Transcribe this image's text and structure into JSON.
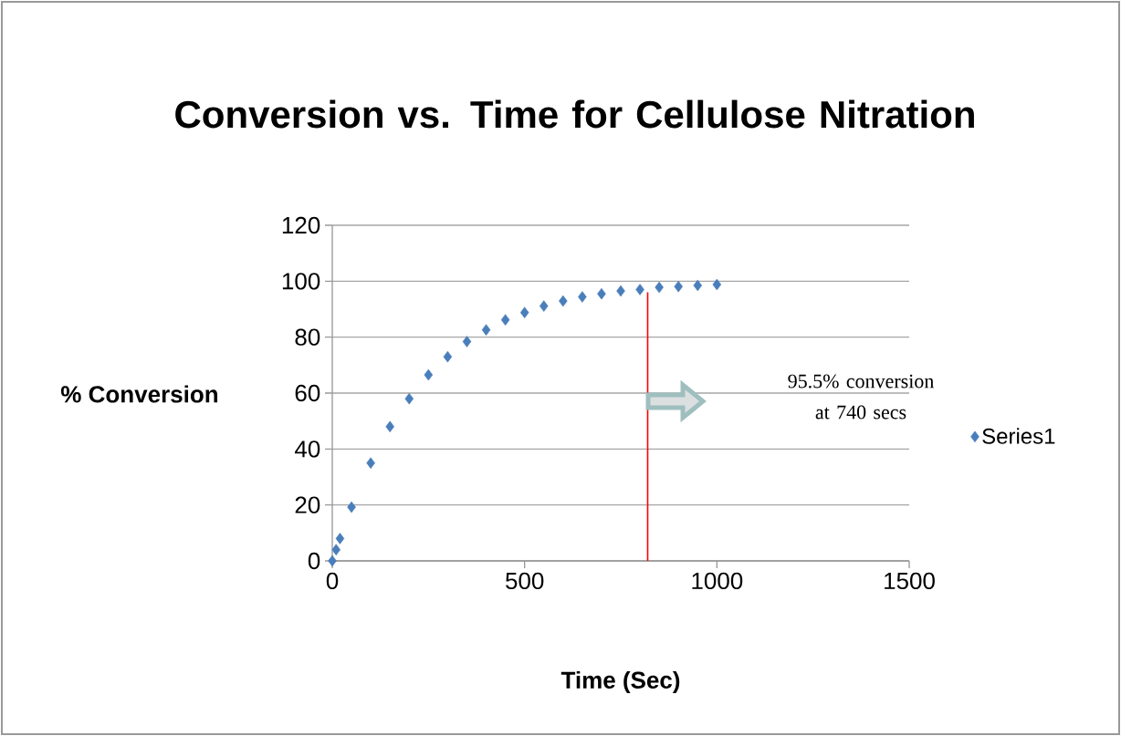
{
  "chart_data": {
    "type": "scatter",
    "title": "Conversion vs. Time for Cellulose Nitration",
    "xlabel": "Time (Sec)",
    "ylabel": "% Conversion",
    "x": [
      0,
      10,
      20,
      50,
      100,
      150,
      200,
      250,
      300,
      350,
      400,
      450,
      500,
      550,
      600,
      650,
      700,
      750,
      800,
      850,
      900,
      950,
      1000
    ],
    "series": [
      {
        "name": "Series1",
        "color": "#4a7ebb",
        "values": [
          0,
          4,
          8,
          19.2,
          35,
          48,
          58,
          66.5,
          73,
          78.4,
          82.6,
          86.2,
          88.8,
          91.1,
          92.9,
          94.4,
          95.5,
          96.5,
          97,
          97.8,
          98.1,
          98.5,
          98.8
        ]
      },
      {
        "type": "line",
        "marker": "none",
        "color": "#ff0000",
        "x": [
          820,
          820
        ],
        "values": [
          0,
          96
        ]
      }
    ],
    "xlim": [
      0,
      1500
    ],
    "xticks": [
      0,
      500,
      1000,
      1500
    ],
    "ylim": [
      0,
      120
    ],
    "yticks": [
      0,
      20,
      40,
      60,
      80,
      100,
      120
    ],
    "grid": "y",
    "legend": "right",
    "marker": "diamond",
    "annotations": [
      "95.5% conversion at 740 secs"
    ]
  }
}
